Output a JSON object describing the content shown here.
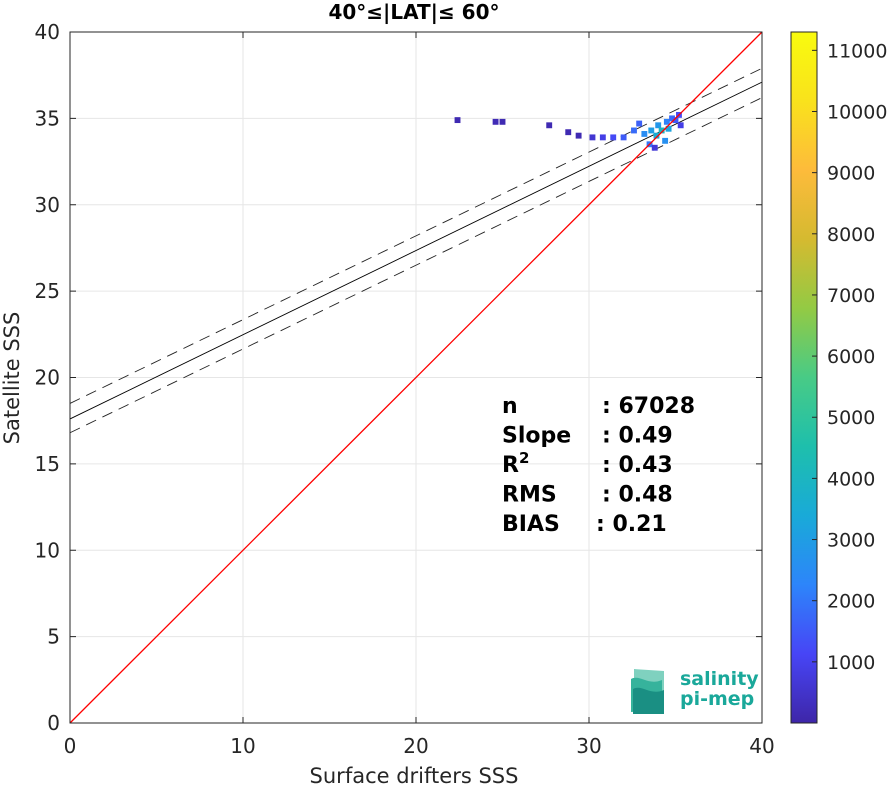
{
  "chart_data": {
    "type": "scatter",
    "title": "40°≤|LAT|≤ 60°",
    "xlabel": "Surface drifters SSS",
    "ylabel": "Satellite SSS",
    "xlim": [
      0,
      40
    ],
    "ylim": [
      0,
      40
    ],
    "xticks": [
      0,
      10,
      20,
      30,
      40
    ],
    "yticks": [
      0,
      5,
      10,
      15,
      20,
      25,
      30,
      35,
      40
    ],
    "grid": true,
    "density_points": [
      {
        "x": 22.4,
        "y": 34.9,
        "count": 150
      },
      {
        "x": 24.6,
        "y": 34.8,
        "count": 200
      },
      {
        "x": 25.0,
        "y": 34.8,
        "count": 150
      },
      {
        "x": 27.7,
        "y": 34.6,
        "count": 150
      },
      {
        "x": 28.8,
        "y": 34.2,
        "count": 150
      },
      {
        "x": 29.4,
        "y": 34.0,
        "count": 150
      },
      {
        "x": 30.2,
        "y": 33.9,
        "count": 600
      },
      {
        "x": 30.8,
        "y": 33.9,
        "count": 900
      },
      {
        "x": 31.4,
        "y": 33.9,
        "count": 1200
      },
      {
        "x": 32.0,
        "y": 33.9,
        "count": 1500
      },
      {
        "x": 32.6,
        "y": 34.3,
        "count": 1800
      },
      {
        "x": 32.9,
        "y": 34.7,
        "count": 1600
      },
      {
        "x": 33.2,
        "y": 34.1,
        "count": 2500
      },
      {
        "x": 33.5,
        "y": 33.5,
        "count": 2000
      },
      {
        "x": 33.6,
        "y": 34.3,
        "count": 3000
      },
      {
        "x": 33.9,
        "y": 34.0,
        "count": 3500
      },
      {
        "x": 34.0,
        "y": 34.6,
        "count": 2800
      },
      {
        "x": 34.2,
        "y": 34.3,
        "count": 4000
      },
      {
        "x": 34.4,
        "y": 33.7,
        "count": 2600
      },
      {
        "x": 34.5,
        "y": 34.8,
        "count": 2200
      },
      {
        "x": 34.6,
        "y": 34.4,
        "count": 3200
      },
      {
        "x": 34.8,
        "y": 35.0,
        "count": 1800
      },
      {
        "x": 35.0,
        "y": 34.9,
        "count": 1500
      },
      {
        "x": 35.2,
        "y": 35.2,
        "count": 1200
      },
      {
        "x": 35.3,
        "y": 34.6,
        "count": 900
      },
      {
        "x": 33.8,
        "y": 33.3,
        "count": 700
      }
    ],
    "reference_line": {
      "name": "1:1",
      "from": [
        0,
        0
      ],
      "to": [
        40,
        40
      ],
      "color": "#ff0000"
    },
    "regression_line": {
      "from": [
        0,
        17.6
      ],
      "to": [
        40,
        37.1
      ],
      "color": "#000000"
    },
    "regression_bounds": [
      {
        "from": [
          0,
          18.5
        ],
        "to": [
          40,
          37.9
        ]
      },
      {
        "from": [
          0,
          16.8
        ],
        "to": [
          40,
          36.2
        ]
      }
    ],
    "colorbar": {
      "min": 0,
      "max": 11300,
      "ticks": [
        1000,
        2000,
        3000,
        4000,
        5000,
        6000,
        7000,
        8000,
        9000,
        10000,
        11000
      ],
      "colormap": [
        "#3e26a8",
        "#4745f6",
        "#2d85fa",
        "#19aad8",
        "#1ebfac",
        "#48cb86",
        "#93ca44",
        "#d5ba30",
        "#fdbb3b",
        "#f9e21c",
        "#f9fb0e"
      ]
    },
    "stats": [
      {
        "label": "n",
        "value": ": 67028"
      },
      {
        "label": "Slope",
        "value": ": 0.49"
      },
      {
        "label": "R",
        "sup": "2",
        "value": ": 0.43"
      },
      {
        "label": "RMS",
        "value": ": 0.48"
      },
      {
        "label": "BIAS",
        "value": ": 0.21"
      }
    ]
  },
  "logo": {
    "line1": "salinity",
    "line2": "pi-mep"
  }
}
